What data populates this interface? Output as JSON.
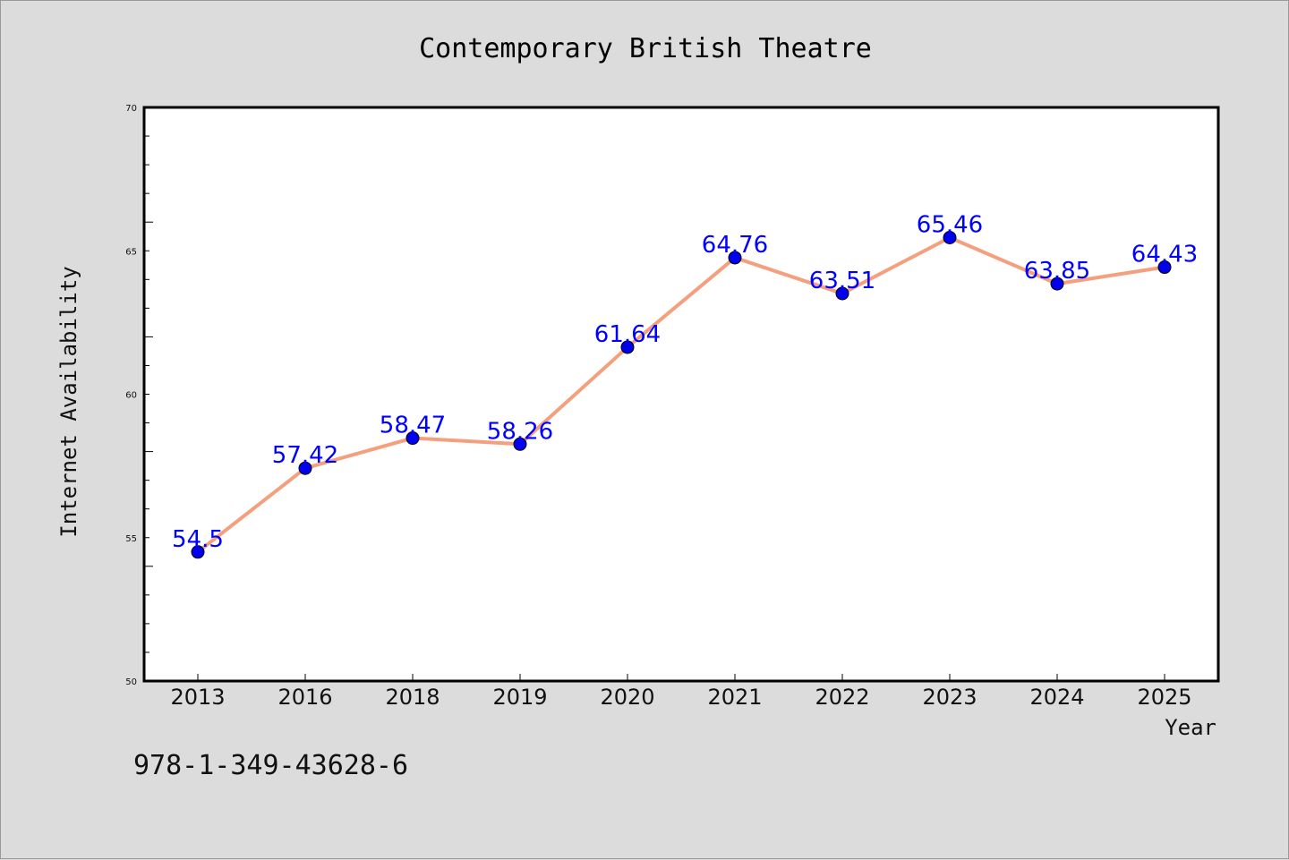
{
  "chart_data": {
    "type": "line",
    "title": "Contemporary British Theatre",
    "xlabel": "Year",
    "ylabel": "Internet Availability",
    "categories": [
      "2013",
      "2016",
      "2018",
      "2019",
      "2020",
      "2021",
      "2022",
      "2023",
      "2024",
      "2025"
    ],
    "series": [
      {
        "values": [
          54.5,
          57.42,
          58.47,
          58.26,
          61.64,
          64.76,
          63.51,
          65.46,
          63.85,
          64.43
        ],
        "data_labels": [
          "54.5",
          "57.42",
          "58.47",
          "58.26",
          "61.64",
          "64.76",
          "63.51",
          "65.46",
          "63.85",
          "64.43"
        ]
      }
    ],
    "ylim": [
      50,
      70
    ],
    "y_ticks": [
      "50",
      "55",
      "60",
      "65",
      "70"
    ],
    "grid": false,
    "line_color": "#f4a07e",
    "marker_color": "#0000ee",
    "label_color": "#0000ff",
    "plot_background": "#ffffff",
    "figure_background": "#dcdcdc"
  },
  "footer": {
    "isbn": "978-1-349-43628-6"
  }
}
